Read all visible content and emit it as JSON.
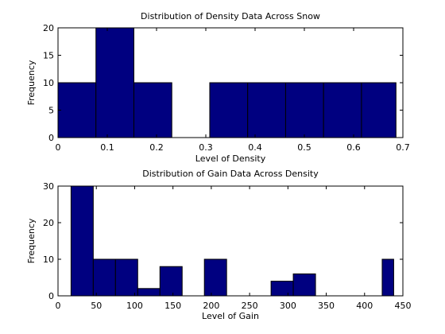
{
  "figure": {
    "background": "#ffffff",
    "bar_color": "#000080",
    "bar_edge_color": "#000000"
  },
  "chart_data": [
    {
      "type": "bar",
      "title": "Distribution of Density Data Across Snow",
      "xlabel": "Level of Density",
      "ylabel": "Frequency",
      "xlim": [
        0,
        0.7
      ],
      "ylim": [
        0,
        20
      ],
      "xticks": [
        0,
        0.1,
        0.2,
        0.3,
        0.4,
        0.5,
        0.6,
        0.7
      ],
      "xtick_labels": [
        "0",
        "0.1",
        "0.2",
        "0.3",
        "0.4",
        "0.5",
        "0.6",
        "0.7"
      ],
      "yticks": [
        0,
        5,
        10,
        15,
        20
      ],
      "ytick_labels": [
        "0",
        "5",
        "10",
        "15",
        "20"
      ],
      "grid": false,
      "bins": [
        {
          "x0": 0.0,
          "x1": 0.077,
          "value": 10
        },
        {
          "x0": 0.077,
          "x1": 0.154,
          "value": 20
        },
        {
          "x0": 0.154,
          "x1": 0.231,
          "value": 10
        },
        {
          "x0": 0.231,
          "x1": 0.308,
          "value": 0
        },
        {
          "x0": 0.308,
          "x1": 0.385,
          "value": 10
        },
        {
          "x0": 0.385,
          "x1": 0.462,
          "value": 10
        },
        {
          "x0": 0.462,
          "x1": 0.539,
          "value": 10
        },
        {
          "x0": 0.539,
          "x1": 0.616,
          "value": 10
        },
        {
          "x0": 0.616,
          "x1": 0.686,
          "value": 10
        }
      ]
    },
    {
      "type": "bar",
      "title": "Distribution of Gain Data Across Density",
      "xlabel": "Level of Gain",
      "ylabel": "Frequency",
      "xlim": [
        0,
        450
      ],
      "ylim": [
        0,
        30
      ],
      "xticks": [
        0,
        50,
        100,
        150,
        200,
        250,
        300,
        350,
        400,
        450
      ],
      "xtick_labels": [
        "0",
        "50",
        "100",
        "150",
        "200",
        "250",
        "300",
        "350",
        "400",
        "450"
      ],
      "yticks": [
        0,
        10,
        20,
        30
      ],
      "ytick_labels": [
        "0",
        "10",
        "20",
        "30"
      ],
      "grid": false,
      "bins": [
        {
          "x0": 17,
          "x1": 46,
          "value": 30
        },
        {
          "x0": 46,
          "x1": 75,
          "value": 10
        },
        {
          "x0": 75,
          "x1": 104,
          "value": 10
        },
        {
          "x0": 104,
          "x1": 133,
          "value": 2
        },
        {
          "x0": 133,
          "x1": 162,
          "value": 8
        },
        {
          "x0": 162,
          "x1": 191,
          "value": 0
        },
        {
          "x0": 191,
          "x1": 220,
          "value": 10
        },
        {
          "x0": 220,
          "x1": 249,
          "value": 0
        },
        {
          "x0": 249,
          "x1": 278,
          "value": 0
        },
        {
          "x0": 278,
          "x1": 307,
          "value": 4
        },
        {
          "x0": 307,
          "x1": 336,
          "value": 6
        },
        {
          "x0": 336,
          "x1": 365,
          "value": 0
        },
        {
          "x0": 365,
          "x1": 394,
          "value": 0
        },
        {
          "x0": 394,
          "x1": 423,
          "value": 0
        },
        {
          "x0": 423,
          "x1": 438,
          "value": 10
        }
      ]
    }
  ]
}
